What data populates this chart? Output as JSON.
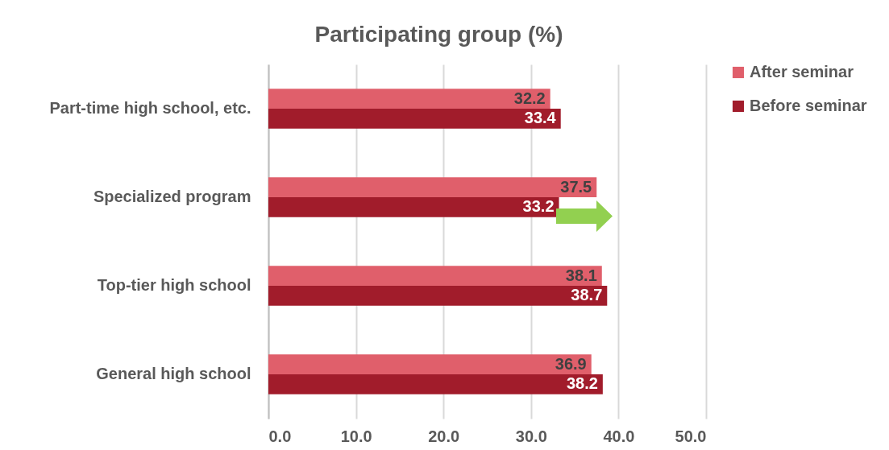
{
  "chart_data": {
    "type": "bar",
    "orientation": "horizontal",
    "title": "Participating group (%)",
    "categories": [
      "Part-time high school, etc.",
      "Specialized program",
      "Top-tier high school",
      "General high school"
    ],
    "series": [
      {
        "name": "After seminar",
        "color": "#e05f6b",
        "values": [
          32.2,
          37.5,
          38.1,
          36.9
        ]
      },
      {
        "name": "Before seminar",
        "color": "#a11c2b",
        "values": [
          33.4,
          33.2,
          38.7,
          38.2
        ]
      }
    ],
    "xlim": [
      0,
      50
    ],
    "xticks": [
      {
        "value": 0,
        "label": "0.0"
      },
      {
        "value": 10,
        "label": "10.0"
      },
      {
        "value": 20,
        "label": "20.0"
      },
      {
        "value": 30,
        "label": "30.0"
      },
      {
        "value": 40,
        "label": "40.0"
      },
      {
        "value": 50,
        "label": "50.0"
      }
    ],
    "grid": "x",
    "legend": "right",
    "data_labels": true
  }
}
